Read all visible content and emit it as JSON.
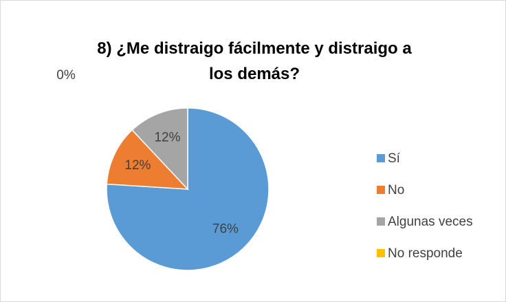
{
  "chart_data": {
    "type": "pie",
    "title": "8) ¿Me distraigo fácilmente y distraigo a los demás?",
    "categories": [
      "Sí",
      "No",
      "Algunas veces",
      "No responde"
    ],
    "values": [
      76,
      12,
      12,
      0
    ],
    "value_labels": [
      "76%",
      "12%",
      "12%",
      "0%"
    ],
    "colors": [
      "#5b9bd5",
      "#ed7d31",
      "#a5a5a5",
      "#ffc000"
    ],
    "legend": "right"
  }
}
